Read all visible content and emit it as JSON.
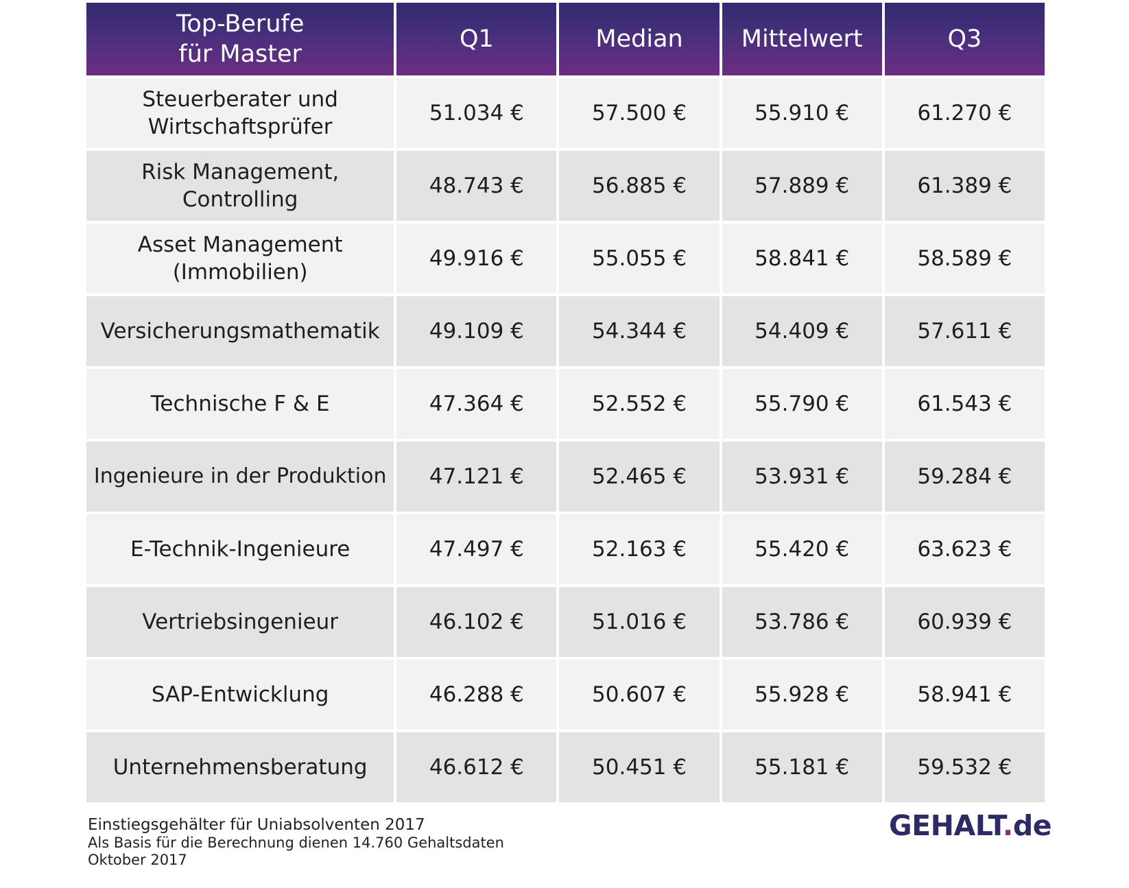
{
  "table": {
    "headers": {
      "name": "Top-Berufe\nfür Master",
      "q1": "Q1",
      "median": "Median",
      "mean": "Mittelwert",
      "q3": "Q3"
    },
    "rows": [
      {
        "name": "Steuerberater und Wirtschaftsprüfer",
        "q1": "51.034 €",
        "median": "57.500 €",
        "mean": "55.910 €",
        "q3": "61.270 €"
      },
      {
        "name": "Risk Management, Controlling",
        "q1": "48.743 €",
        "median": "56.885 €",
        "mean": "57.889 €",
        "q3": "61.389 €"
      },
      {
        "name": "Asset Management (Immobilien)",
        "q1": "49.916 €",
        "median": "55.055 €",
        "mean": "58.841 €",
        "q3": "58.589 €"
      },
      {
        "name": "Versicherungsmathematik",
        "q1": "49.109 €",
        "median": "54.344 €",
        "mean": "54.409 €",
        "q3": "57.611 €"
      },
      {
        "name": "Technische F & E",
        "q1": "47.364 €",
        "median": "52.552 €",
        "mean": "55.790 €",
        "q3": "61.543 €"
      },
      {
        "name": "Ingenieure in der Produktion",
        "q1": "47.121 €",
        "median": "52.465 €",
        "mean": "53.931 €",
        "q3": "59.284 €"
      },
      {
        "name": "E-Technik-Ingenieure",
        "q1": "47.497 €",
        "median": "52.163 €",
        "mean": "55.420 €",
        "q3": "63.623 €"
      },
      {
        "name": "Vertriebsingenieur",
        "q1": "46.102 €",
        "median": "51.016 €",
        "mean": "53.786 €",
        "q3": "60.939 €"
      },
      {
        "name": "SAP-Entwicklung",
        "q1": "46.288 €",
        "median": "50.607 €",
        "mean": "55.928 €",
        "q3": "58.941 €"
      },
      {
        "name": "Unternehmensberatung",
        "q1": "46.612 €",
        "median": "50.451 €",
        "mean": "55.181 €",
        "q3": "59.532 €"
      }
    ]
  },
  "footnote": {
    "line1": "Einstiegsgehälter für Uniabsolventen 2017",
    "line2": "Als Basis für die Berechnung dienen 14.760 Gehaltsdaten",
    "line3": "Oktober 2017"
  },
  "logo": {
    "part1": "GEHALT",
    "dot": ".",
    "part2": "de"
  },
  "colors": {
    "header_top": "#302b6e",
    "header_bottom": "#6c2d82",
    "row_light": "#f2f2f2",
    "row_dark": "#e3e3e3",
    "logo_text": "#2d2a66",
    "logo_dot": "#8a2d86"
  }
}
